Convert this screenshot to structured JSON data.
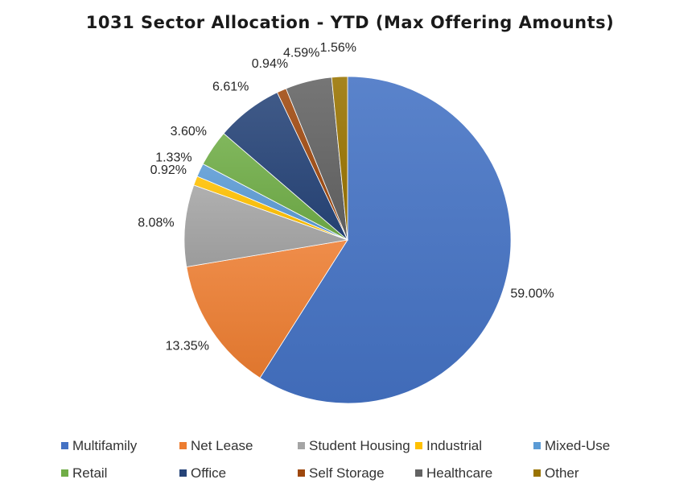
{
  "chart_data": {
    "type": "pie",
    "title": "1031 Sector Allocation - YTD (Max Offering Amounts)",
    "unit": "%",
    "legend_position": "bottom",
    "slices": [
      {
        "name": "Multifamily",
        "value": 59.0,
        "label": "59.00%",
        "color": "#4472C4"
      },
      {
        "name": "Net Lease",
        "value": 13.35,
        "label": "13.35%",
        "color": "#ED7D31"
      },
      {
        "name": "Student Housing",
        "value": 8.08,
        "label": "8.08%",
        "color": "#A5A5A5"
      },
      {
        "name": "Industrial",
        "value": 0.92,
        "label": "0.92%",
        "color": "#FFC000"
      },
      {
        "name": "Mixed-Use",
        "value": 1.33,
        "label": "1.33%",
        "color": "#5B9BD5"
      },
      {
        "name": "Retail",
        "value": 3.6,
        "label": "3.60%",
        "color": "#70AD47"
      },
      {
        "name": "Office",
        "value": 6.61,
        "label": "6.61%",
        "color": "#264478"
      },
      {
        "name": "Self Storage",
        "value": 0.94,
        "label": "0.94%",
        "color": "#9E480E"
      },
      {
        "name": "Healthcare",
        "value": 4.59,
        "label": "4.59%",
        "color": "#636363"
      },
      {
        "name": "Other",
        "value": 1.56,
        "label": "1.56%",
        "color": "#997300"
      }
    ]
  }
}
